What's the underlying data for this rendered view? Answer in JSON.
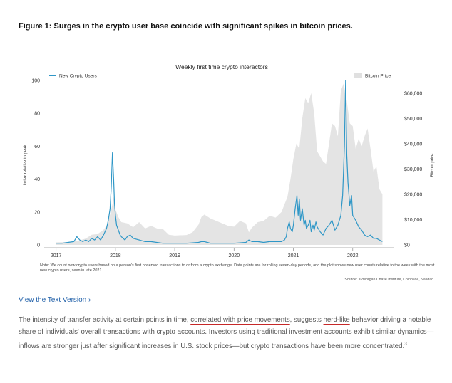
{
  "figure": {
    "title": "Figure 1: Surges in the crypto user base coincide with significant spikes in bitcoin prices.",
    "note": "Note: We count new crypto users based on a person's first observed transactions to or from a crypto exchange. Data points are for rolling seven-day periods, and the plot shows new user counts relative to the week with the most new crypto users, seen in late 2021.",
    "source": "Source: JPMorgan Chase Institute, Coinbase, Nasdaq"
  },
  "link": {
    "label": "View the Text Version",
    "chevron": "›"
  },
  "body": {
    "part1": "The intensity of transfer activity at certain points in time, ",
    "underline1": "correlated with price movements",
    "part2": ", suggests ",
    "underline2": "herd-like",
    "part3": " behavior driving a notable share of individuals' overall transactions with crypto accounts. Investors using traditional investment accounts exhibit similar dynamics—inflows are stronger just after significant increases in U.S. stock prices—but crypto transactions have been more concentrated.",
    "footnote": "3"
  },
  "colors": {
    "line": "#2f97c7",
    "area": "#e4e4e4",
    "axis": "#999999",
    "underline": "#c62828"
  },
  "chart_data": {
    "type": "line",
    "title": "Weekly first time crypto interactors",
    "ylabel": "Index relative to peak",
    "y2label": "Bitcoin price",
    "xlim": [
      2016.8,
      2022.7
    ],
    "ylim": [
      0,
      100
    ],
    "y2lim": [
      0,
      65000
    ],
    "xticks": [
      2017,
      2018,
      2019,
      2020,
      2021,
      2022
    ],
    "xtick_labels": [
      "2017",
      "2018",
      "2019",
      "2020",
      "2021",
      "2022"
    ],
    "yticks": [
      0,
      20,
      40,
      60,
      80,
      100
    ],
    "ytick_labels": [
      "0",
      "20",
      "40",
      "60",
      "80",
      "100"
    ],
    "y2ticks": [
      0,
      10000,
      20000,
      30000,
      40000,
      50000,
      60000
    ],
    "y2tick_labels": [
      "$0",
      "$10,000",
      "$20,000",
      "$30,000",
      "$40,000",
      "$50,000",
      "$60,000"
    ],
    "legend": "top",
    "series": [
      {
        "name": "New Crypto Users",
        "axis": "left",
        "x": [
          2017.0,
          2017.1,
          2017.2,
          2017.3,
          2017.35,
          2017.4,
          2017.45,
          2017.5,
          2017.55,
          2017.6,
          2017.65,
          2017.7,
          2017.75,
          2017.8,
          2017.85,
          2017.88,
          2017.91,
          2017.93,
          2017.95,
          2017.97,
          2017.985,
          2018.0,
          2018.02,
          2018.05,
          2018.08,
          2018.1,
          2018.13,
          2018.16,
          2018.2,
          2018.25,
          2018.3,
          2018.4,
          2018.5,
          2018.6,
          2018.8,
          2019.0,
          2019.2,
          2019.4,
          2019.45,
          2019.5,
          2019.55,
          2019.6,
          2019.8,
          2020.0,
          2020.2,
          2020.25,
          2020.3,
          2020.4,
          2020.5,
          2020.6,
          2020.7,
          2020.8,
          2020.85,
          2020.88,
          2020.9,
          2020.93,
          2020.95,
          2020.98,
          2021.0,
          2021.03,
          2021.06,
          2021.08,
          2021.1,
          2021.12,
          2021.15,
          2021.18,
          2021.2,
          2021.22,
          2021.25,
          2021.28,
          2021.3,
          2021.33,
          2021.35,
          2021.38,
          2021.4,
          2021.45,
          2021.5,
          2021.55,
          2021.6,
          2021.65,
          2021.7,
          2021.75,
          2021.8,
          2021.83,
          2021.86,
          2021.88,
          2021.9,
          2021.92,
          2021.95,
          2021.98,
          2022.0,
          2022.05,
          2022.1,
          2022.15,
          2022.2,
          2022.25,
          2022.3,
          2022.35,
          2022.4,
          2022.45,
          2022.5
        ],
        "values": [
          1,
          1,
          1.5,
          2,
          5,
          3,
          2,
          3,
          2,
          4,
          3,
          5,
          3,
          6,
          10,
          15,
          22,
          35,
          56,
          40,
          25,
          18,
          12,
          9,
          6,
          5,
          4,
          3,
          5,
          6,
          4,
          3,
          2,
          2,
          1,
          1,
          1,
          1.5,
          2,
          2,
          1.5,
          1,
          1,
          1,
          1.5,
          3,
          2,
          2,
          1.5,
          2,
          2,
          2,
          3,
          5,
          10,
          14,
          10,
          8,
          12,
          22,
          30,
          18,
          28,
          15,
          22,
          12,
          15,
          10,
          12,
          15,
          8,
          12,
          9,
          14,
          11,
          8,
          6,
          10,
          12,
          15,
          9,
          12,
          18,
          30,
          60,
          100,
          55,
          38,
          24,
          30,
          18,
          15,
          11,
          9,
          6,
          5,
          6,
          4,
          4,
          3,
          2
        ]
      },
      {
        "name": "Bitcoin Price",
        "axis": "right",
        "x": [
          2017.0,
          2017.2,
          2017.4,
          2017.5,
          2017.6,
          2017.7,
          2017.8,
          2017.85,
          2017.9,
          2017.95,
          2017.97,
          2018.0,
          2018.05,
          2018.1,
          2018.2,
          2018.3,
          2018.4,
          2018.5,
          2018.6,
          2018.7,
          2018.8,
          2018.9,
          2019.0,
          2019.2,
          2019.3,
          2019.4,
          2019.45,
          2019.5,
          2019.6,
          2019.7,
          2019.8,
          2019.9,
          2020.0,
          2020.1,
          2020.2,
          2020.25,
          2020.3,
          2020.4,
          2020.5,
          2020.6,
          2020.7,
          2020.8,
          2020.85,
          2020.9,
          2020.95,
          2021.0,
          2021.05,
          2021.1,
          2021.15,
          2021.2,
          2021.25,
          2021.3,
          2021.35,
          2021.4,
          2021.45,
          2021.5,
          2021.55,
          2021.6,
          2021.65,
          2021.7,
          2021.75,
          2021.8,
          2021.85,
          2021.88,
          2021.9,
          2021.95,
          2022.0,
          2022.05,
          2022.1,
          2022.15,
          2022.2,
          2022.25,
          2022.3,
          2022.35,
          2022.4,
          2022.45,
          2022.5
        ],
        "values": [
          1000,
          1100,
          1800,
          2500,
          4000,
          4300,
          6000,
          7500,
          11000,
          16000,
          19000,
          14000,
          11000,
          9000,
          8500,
          7000,
          9000,
          6500,
          7500,
          6500,
          6300,
          4000,
          3700,
          3900,
          5000,
          8000,
          11000,
          12000,
          10500,
          9500,
          8500,
          7500,
          7200,
          9500,
          8500,
          5000,
          6800,
          9000,
          9500,
          11500,
          10800,
          13000,
          16000,
          19000,
          26000,
          34000,
          40000,
          38000,
          50000,
          58000,
          56000,
          60000,
          52000,
          37000,
          35000,
          33000,
          32000,
          40000,
          48000,
          47000,
          43000,
          61000,
          64000,
          58000,
          57000,
          48000,
          47000,
          38000,
          42000,
          39000,
          43000,
          46000,
          38000,
          29000,
          31000,
          22000,
          20000
        ]
      }
    ]
  }
}
